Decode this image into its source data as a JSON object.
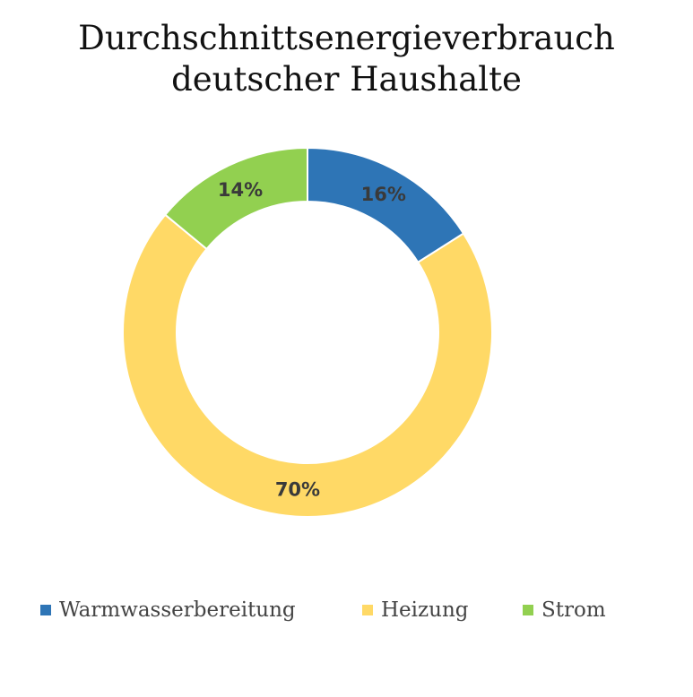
{
  "chart_data": {
    "type": "pie",
    "variant": "donut",
    "title_lines": [
      "Durchschnittsenergieverbrauch",
      "deutscher Haushalte"
    ],
    "slices": [
      {
        "name": "Warmwasserbereitung",
        "value": 16,
        "label": "16%",
        "color": "#2E75B6"
      },
      {
        "name": "Heizung",
        "value": 70,
        "label": "70%",
        "color": "#FFD966"
      },
      {
        "name": "Strom",
        "value": 14,
        "label": "14%",
        "color": "#92D050"
      }
    ],
    "legend_position": "bottom"
  }
}
